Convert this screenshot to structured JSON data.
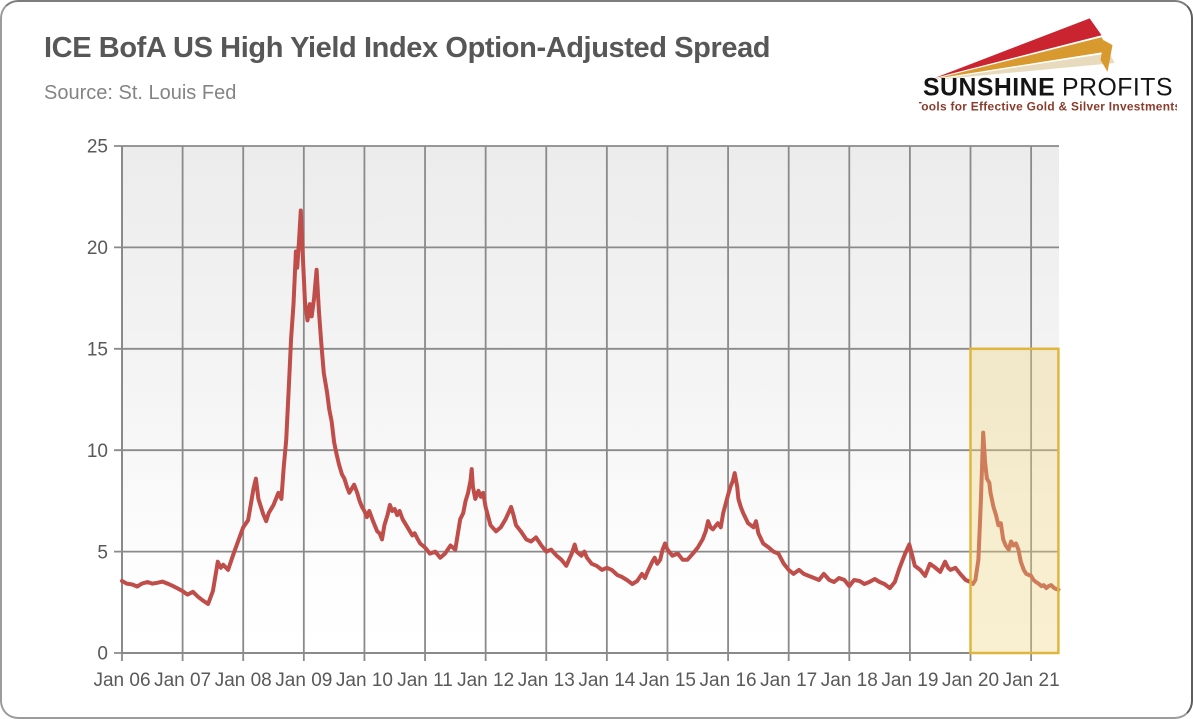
{
  "header": {
    "title": "ICE BofA US High Yield Index Option-Adjusted Spread",
    "source": "Source: St. Louis Fed"
  },
  "logo": {
    "name_bold": "SUNSHINE",
    "name_light": "PROFITS",
    "tagline": "Tools for Effective Gold & Silver Investments",
    "colors": {
      "ray_red": "#c9242f",
      "ray_gold": "#d89a2e",
      "ray_beige": "#e7dabd",
      "name_text": "#141414",
      "tagline_text": "#8a3b2b"
    }
  },
  "chart_data": {
    "type": "line",
    "title": "ICE BofA US High Yield Index Option-Adjusted Spread",
    "source": "St. Louis Fed",
    "grid": true,
    "legend_position": "none",
    "x_range": [
      2006.0,
      2021.46
    ],
    "ylim": [
      0,
      25
    ],
    "y_ticks": [
      0,
      5,
      10,
      15,
      20,
      25
    ],
    "y_tick_labels": [
      "0",
      "5",
      "10",
      "15",
      "20",
      "25"
    ],
    "x_tick_years": [
      2006,
      2007,
      2008,
      2009,
      2010,
      2011,
      2012,
      2013,
      2014,
      2015,
      2016,
      2017,
      2018,
      2019,
      2020,
      2021
    ],
    "x_tick_labels": [
      "Jan 06",
      "Jan 07",
      "Jan 08",
      "Jan 09",
      "Jan 10",
      "Jan 11",
      "Jan 12",
      "Jan 13",
      "Jan 14",
      "Jan 15",
      "Jan 16",
      "Jan 17",
      "Jan 18",
      "Jan 19",
      "Jan 20",
      "Jan 21"
    ],
    "colors": {
      "line": "#bf4d49",
      "grid": "#8a8a8a",
      "axis_text": "#595959",
      "plot_bg_top": "#ececec",
      "plot_bg_bottom": "#ffffff",
      "highlight_fill": "rgba(235,212,121,0.35)",
      "highlight_border": "#e0b63e"
    },
    "highlight_region": {
      "x_from": 2020.0,
      "x_to": 2021.45,
      "y_from": 0,
      "y_to": 15
    },
    "series": [
      {
        "name": "ICE BofA US High Yield Index Option-Adjusted Spread (%)",
        "points": [
          [
            2006.0,
            3.55
          ],
          [
            2006.08,
            3.42
          ],
          [
            2006.17,
            3.38
          ],
          [
            2006.25,
            3.28
          ],
          [
            2006.33,
            3.42
          ],
          [
            2006.42,
            3.5
          ],
          [
            2006.5,
            3.42
          ],
          [
            2006.58,
            3.46
          ],
          [
            2006.67,
            3.52
          ],
          [
            2006.75,
            3.42
          ],
          [
            2006.83,
            3.32
          ],
          [
            2006.92,
            3.18
          ],
          [
            2007.0,
            3.05
          ],
          [
            2007.08,
            2.88
          ],
          [
            2007.17,
            3.02
          ],
          [
            2007.25,
            2.78
          ],
          [
            2007.33,
            2.6
          ],
          [
            2007.42,
            2.42
          ],
          [
            2007.5,
            3.05
          ],
          [
            2007.58,
            4.5
          ],
          [
            2007.63,
            4.2
          ],
          [
            2007.67,
            4.35
          ],
          [
            2007.75,
            4.1
          ],
          [
            2007.83,
            4.8
          ],
          [
            2007.92,
            5.55
          ],
          [
            2008.0,
            6.2
          ],
          [
            2008.08,
            6.55
          ],
          [
            2008.17,
            8.1
          ],
          [
            2008.21,
            8.6
          ],
          [
            2008.25,
            7.6
          ],
          [
            2008.33,
            6.85
          ],
          [
            2008.38,
            6.5
          ],
          [
            2008.42,
            6.9
          ],
          [
            2008.5,
            7.3
          ],
          [
            2008.58,
            7.9
          ],
          [
            2008.63,
            7.6
          ],
          [
            2008.67,
            9.2
          ],
          [
            2008.71,
            10.5
          ],
          [
            2008.75,
            13.0
          ],
          [
            2008.79,
            15.5
          ],
          [
            2008.83,
            17.2
          ],
          [
            2008.87,
            19.8
          ],
          [
            2008.89,
            19.0
          ],
          [
            2008.92,
            20.3
          ],
          [
            2008.95,
            21.82
          ],
          [
            2008.98,
            19.8
          ],
          [
            2009.02,
            17.3
          ],
          [
            2009.06,
            16.4
          ],
          [
            2009.1,
            17.2
          ],
          [
            2009.13,
            16.6
          ],
          [
            2009.17,
            17.5
          ],
          [
            2009.21,
            18.9
          ],
          [
            2009.25,
            16.8
          ],
          [
            2009.29,
            15.2
          ],
          [
            2009.33,
            13.8
          ],
          [
            2009.38,
            12.9
          ],
          [
            2009.42,
            12.0
          ],
          [
            2009.46,
            11.4
          ],
          [
            2009.5,
            10.4
          ],
          [
            2009.54,
            9.8
          ],
          [
            2009.58,
            9.3
          ],
          [
            2009.63,
            8.8
          ],
          [
            2009.67,
            8.6
          ],
          [
            2009.71,
            8.2
          ],
          [
            2009.75,
            7.9
          ],
          [
            2009.79,
            8.1
          ],
          [
            2009.83,
            8.3
          ],
          [
            2009.88,
            7.9
          ],
          [
            2009.92,
            7.5
          ],
          [
            2009.96,
            7.2
          ],
          [
            2010.0,
            7.0
          ],
          [
            2010.04,
            6.7
          ],
          [
            2010.08,
            7.0
          ],
          [
            2010.13,
            6.6
          ],
          [
            2010.17,
            6.3
          ],
          [
            2010.21,
            6.0
          ],
          [
            2010.25,
            5.9
          ],
          [
            2010.29,
            5.6
          ],
          [
            2010.33,
            6.3
          ],
          [
            2010.38,
            6.8
          ],
          [
            2010.42,
            7.3
          ],
          [
            2010.46,
            7.0
          ],
          [
            2010.5,
            7.1
          ],
          [
            2010.54,
            6.8
          ],
          [
            2010.58,
            7.0
          ],
          [
            2010.63,
            6.6
          ],
          [
            2010.67,
            6.4
          ],
          [
            2010.71,
            6.2
          ],
          [
            2010.75,
            6.0
          ],
          [
            2010.79,
            5.8
          ],
          [
            2010.83,
            5.9
          ],
          [
            2010.88,
            5.6
          ],
          [
            2010.92,
            5.4
          ],
          [
            2011.0,
            5.2
          ],
          [
            2011.08,
            4.9
          ],
          [
            2011.17,
            5.0
          ],
          [
            2011.25,
            4.7
          ],
          [
            2011.33,
            4.9
          ],
          [
            2011.42,
            5.3
          ],
          [
            2011.5,
            5.1
          ],
          [
            2011.58,
            6.6
          ],
          [
            2011.63,
            6.9
          ],
          [
            2011.67,
            7.5
          ],
          [
            2011.71,
            7.9
          ],
          [
            2011.75,
            8.5
          ],
          [
            2011.77,
            9.07
          ],
          [
            2011.79,
            8.2
          ],
          [
            2011.83,
            7.6
          ],
          [
            2011.88,
            8.0
          ],
          [
            2011.92,
            7.7
          ],
          [
            2011.96,
            7.9
          ],
          [
            2012.0,
            7.2
          ],
          [
            2012.08,
            6.3
          ],
          [
            2012.17,
            6.0
          ],
          [
            2012.25,
            6.2
          ],
          [
            2012.33,
            6.6
          ],
          [
            2012.42,
            7.2
          ],
          [
            2012.46,
            6.8
          ],
          [
            2012.5,
            6.3
          ],
          [
            2012.58,
            6.0
          ],
          [
            2012.67,
            5.6
          ],
          [
            2012.75,
            5.5
          ],
          [
            2012.83,
            5.7
          ],
          [
            2012.92,
            5.3
          ],
          [
            2013.0,
            5.0
          ],
          [
            2013.08,
            5.1
          ],
          [
            2013.17,
            4.8
          ],
          [
            2013.25,
            4.6
          ],
          [
            2013.33,
            4.3
          ],
          [
            2013.42,
            4.9
          ],
          [
            2013.47,
            5.35
          ],
          [
            2013.5,
            5.0
          ],
          [
            2013.58,
            4.8
          ],
          [
            2013.63,
            5.0
          ],
          [
            2013.67,
            4.7
          ],
          [
            2013.75,
            4.4
          ],
          [
            2013.83,
            4.3
          ],
          [
            2013.92,
            4.1
          ],
          [
            2014.0,
            4.2
          ],
          [
            2014.08,
            4.1
          ],
          [
            2014.17,
            3.85
          ],
          [
            2014.25,
            3.75
          ],
          [
            2014.33,
            3.6
          ],
          [
            2014.42,
            3.4
          ],
          [
            2014.5,
            3.55
          ],
          [
            2014.58,
            3.9
          ],
          [
            2014.63,
            3.7
          ],
          [
            2014.67,
            4.0
          ],
          [
            2014.75,
            4.5
          ],
          [
            2014.79,
            4.7
          ],
          [
            2014.83,
            4.4
          ],
          [
            2014.88,
            4.6
          ],
          [
            2014.92,
            5.1
          ],
          [
            2014.96,
            5.4
          ],
          [
            2015.0,
            5.1
          ],
          [
            2015.08,
            4.8
          ],
          [
            2015.17,
            4.9
          ],
          [
            2015.25,
            4.6
          ],
          [
            2015.33,
            4.6
          ],
          [
            2015.42,
            4.9
          ],
          [
            2015.5,
            5.2
          ],
          [
            2015.58,
            5.6
          ],
          [
            2015.63,
            6.0
          ],
          [
            2015.67,
            6.5
          ],
          [
            2015.71,
            6.2
          ],
          [
            2015.75,
            6.1
          ],
          [
            2015.83,
            6.4
          ],
          [
            2015.88,
            6.2
          ],
          [
            2015.92,
            6.9
          ],
          [
            2016.0,
            7.8
          ],
          [
            2016.04,
            8.2
          ],
          [
            2016.08,
            8.5
          ],
          [
            2016.11,
            8.87
          ],
          [
            2016.15,
            8.2
          ],
          [
            2016.17,
            7.6
          ],
          [
            2016.21,
            7.2
          ],
          [
            2016.25,
            6.9
          ],
          [
            2016.33,
            6.4
          ],
          [
            2016.42,
            6.2
          ],
          [
            2016.46,
            6.5
          ],
          [
            2016.5,
            5.9
          ],
          [
            2016.58,
            5.4
          ],
          [
            2016.67,
            5.2
          ],
          [
            2016.75,
            5.0
          ],
          [
            2016.83,
            4.9
          ],
          [
            2016.92,
            4.4
          ],
          [
            2017.0,
            4.1
          ],
          [
            2017.08,
            3.9
          ],
          [
            2017.17,
            4.1
          ],
          [
            2017.25,
            3.9
          ],
          [
            2017.33,
            3.8
          ],
          [
            2017.42,
            3.7
          ],
          [
            2017.5,
            3.6
          ],
          [
            2017.58,
            3.9
          ],
          [
            2017.67,
            3.6
          ],
          [
            2017.75,
            3.5
          ],
          [
            2017.83,
            3.7
          ],
          [
            2017.92,
            3.6
          ],
          [
            2018.0,
            3.3
          ],
          [
            2018.08,
            3.6
          ],
          [
            2018.17,
            3.55
          ],
          [
            2018.25,
            3.4
          ],
          [
            2018.33,
            3.5
          ],
          [
            2018.42,
            3.65
          ],
          [
            2018.5,
            3.5
          ],
          [
            2018.58,
            3.4
          ],
          [
            2018.67,
            3.2
          ],
          [
            2018.75,
            3.5
          ],
          [
            2018.83,
            4.2
          ],
          [
            2018.92,
            4.9
          ],
          [
            2018.99,
            5.35
          ],
          [
            2019.04,
            4.8
          ],
          [
            2019.08,
            4.3
          ],
          [
            2019.17,
            4.1
          ],
          [
            2019.25,
            3.8
          ],
          [
            2019.33,
            4.4
          ],
          [
            2019.42,
            4.2
          ],
          [
            2019.5,
            4.0
          ],
          [
            2019.58,
            4.5
          ],
          [
            2019.63,
            4.2
          ],
          [
            2019.67,
            4.1
          ],
          [
            2019.75,
            4.2
          ],
          [
            2019.83,
            3.9
          ],
          [
            2019.92,
            3.6
          ],
          [
            2020.0,
            3.5
          ],
          [
            2020.04,
            3.4
          ],
          [
            2020.08,
            3.6
          ],
          [
            2020.13,
            4.6
          ],
          [
            2020.17,
            7.4
          ],
          [
            2020.21,
            10.87
          ],
          [
            2020.24,
            9.4
          ],
          [
            2020.27,
            8.6
          ],
          [
            2020.31,
            8.4
          ],
          [
            2020.33,
            7.9
          ],
          [
            2020.38,
            7.2
          ],
          [
            2020.42,
            6.8
          ],
          [
            2020.46,
            6.3
          ],
          [
            2020.5,
            6.4
          ],
          [
            2020.54,
            5.6
          ],
          [
            2020.58,
            5.3
          ],
          [
            2020.63,
            5.1
          ],
          [
            2020.67,
            5.5
          ],
          [
            2020.71,
            5.3
          ],
          [
            2020.75,
            5.4
          ],
          [
            2020.79,
            5.1
          ],
          [
            2020.83,
            4.5
          ],
          [
            2020.88,
            4.1
          ],
          [
            2020.92,
            3.9
          ],
          [
            2021.0,
            3.8
          ],
          [
            2021.04,
            3.6
          ],
          [
            2021.08,
            3.5
          ],
          [
            2021.13,
            3.4
          ],
          [
            2021.17,
            3.3
          ],
          [
            2021.21,
            3.35
          ],
          [
            2021.25,
            3.2
          ],
          [
            2021.29,
            3.3
          ],
          [
            2021.33,
            3.35
          ],
          [
            2021.38,
            3.2
          ],
          [
            2021.42,
            3.15
          ],
          [
            2021.45,
            3.12
          ]
        ]
      }
    ]
  }
}
